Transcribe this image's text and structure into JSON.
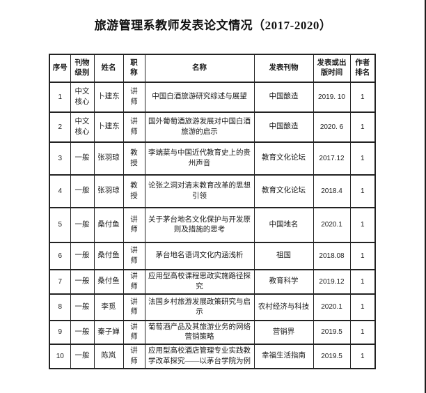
{
  "title": "旅游管理系教师发表论文情况（2017-2020）",
  "table": {
    "headers": [
      "序号",
      "刊物级别",
      "姓名",
      "职称",
      "名称",
      "发表刊物",
      "发表或出版时间",
      "作者排名"
    ],
    "rows": [
      {
        "index": "1",
        "level": "中文核心",
        "name": "卜建东",
        "job_title": "讲师",
        "paper": "中国白酒旅游研究综述与展望",
        "journal": "中国酿造",
        "date": "2019. 10",
        "rank": "1"
      },
      {
        "index": "2",
        "level": "中文核心",
        "name": "卜建东",
        "job_title": "讲师",
        "paper": "国外葡萄酒旅游发展对中国白酒旅游的启示",
        "journal": "中国酿造",
        "date": "2020. 6",
        "rank": "1"
      },
      {
        "index": "3",
        "level": "一般",
        "name": "张羽琼",
        "job_title": "教授",
        "paper": "李端棻与中国近代教育史上的贵州声音",
        "journal": "教育文化论坛",
        "date": "2017.12",
        "rank": "1"
      },
      {
        "index": "4",
        "level": "一般",
        "name": "张羽琼",
        "job_title": "教授",
        "paper": "论张之洞对清末教育改革的思想引领",
        "journal": "教育文化论坛",
        "date": "2018.4",
        "rank": "1"
      },
      {
        "index": "5",
        "level": "一般",
        "name": "桑付鱼",
        "job_title": "讲师",
        "paper": "关于茅台地名文化保护与开发原则及措施的思考",
        "journal": "中国地名",
        "date": "2020.1",
        "rank": "1"
      },
      {
        "index": "6",
        "level": "一般",
        "name": "桑付鱼",
        "job_title": "讲师",
        "paper": "茅台地名语词文化内涵浅析",
        "journal": "祖国",
        "date": "2018.08",
        "rank": "1"
      },
      {
        "index": "7",
        "level": "一般",
        "name": "桑付鱼",
        "job_title": "讲师",
        "paper": "应用型高校课程思政实施路径探究",
        "journal": "教育科学",
        "date": "2019.12",
        "rank": "1"
      },
      {
        "index": "8",
        "level": "一般",
        "name": "李觅",
        "job_title": "讲师",
        "paper": "法国乡村旅游发展政策研究与启示",
        "journal": "农村经济与科技",
        "date": "2020.1",
        "rank": "1"
      },
      {
        "index": "9",
        "level": "一般",
        "name": "秦子婵",
        "job_title": "讲师",
        "paper": "葡萄酒产品及其旅游业务的网络营销策略",
        "journal": "营销界",
        "date": "2019.5",
        "rank": "1"
      },
      {
        "index": "10",
        "level": "一般",
        "name": "陈岚",
        "job_title": "讲师",
        "paper": "应用型高校酒店管理专业实践教学改革探究——以茅台学院为例",
        "journal": "幸福生活指南",
        "date": "2019.5",
        "rank": "1"
      }
    ]
  },
  "colors": {
    "background": "#ffffff",
    "text": "#1a1a1a",
    "border": "#222222",
    "window_edge": "#1c1c1c"
  }
}
